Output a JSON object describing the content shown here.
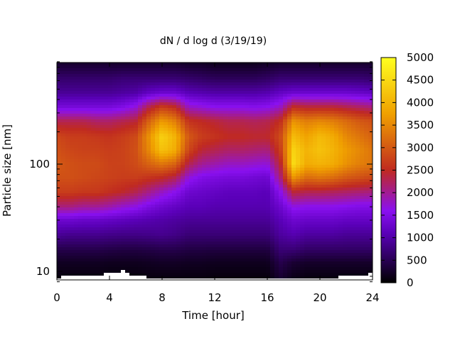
{
  "chart_data": {
    "type": "heatmap",
    "title": "dN / d log d (3/19/19)",
    "xlabel": "Time [hour]",
    "ylabel": "Particle size [nm]",
    "x_range": [
      0,
      24
    ],
    "y_range_nm": [
      8,
      900
    ],
    "y_scale": "log",
    "x_ticks": [
      {
        "value": 0,
        "label": "0"
      },
      {
        "value": 4,
        "label": "4"
      },
      {
        "value": 8,
        "label": "8"
      },
      {
        "value": 12,
        "label": "12"
      },
      {
        "value": 16,
        "label": "16"
      },
      {
        "value": 20,
        "label": "20"
      },
      {
        "value": 24,
        "label": "24"
      }
    ],
    "y_ticks": [
      {
        "value": 10,
        "label": "10"
      },
      {
        "value": 100,
        "label": "100"
      }
    ],
    "colorbar": {
      "range": [
        0,
        5000
      ],
      "palette": [
        "#000000",
        "#6a00d0",
        "#c02a20",
        "#f0a000",
        "#ffff20"
      ],
      "ticks": [
        {
          "value": 0,
          "label": "0"
        },
        {
          "value": 500,
          "label": "500"
        },
        {
          "value": 1000,
          "label": "1000"
        },
        {
          "value": 1500,
          "label": "1500"
        },
        {
          "value": 2000,
          "label": "2000"
        },
        {
          "value": 2500,
          "label": "2500"
        },
        {
          "value": 3000,
          "label": "3000"
        },
        {
          "value": 3500,
          "label": "3500"
        },
        {
          "value": 4000,
          "label": "4000"
        },
        {
          "value": 4500,
          "label": "4500"
        },
        {
          "value": 5000,
          "label": "5000"
        }
      ]
    },
    "hours": [
      0,
      1,
      2,
      3,
      4,
      5,
      6,
      7,
      8,
      9,
      10,
      11,
      12,
      13,
      14,
      15,
      16,
      17,
      18,
      19,
      20,
      21,
      22,
      23,
      24
    ],
    "sizes_nm": [
      9,
      12,
      16,
      22,
      30,
      40,
      55,
      75,
      100,
      135,
      180,
      250,
      340,
      460,
      620,
      850
    ],
    "values": [
      [
        100,
        200,
        450,
        900,
        1300,
        2100,
        2700,
        2900,
        3000,
        2900,
        2800,
        2300,
        1400,
        900,
        650,
        300
      ],
      [
        100,
        200,
        450,
        850,
        1300,
        2100,
        2700,
        2900,
        2900,
        2800,
        2700,
        2300,
        1400,
        900,
        650,
        300
      ],
      [
        100,
        200,
        450,
        850,
        1250,
        2000,
        2650,
        2850,
        2850,
        2750,
        2700,
        2300,
        1400,
        900,
        650,
        300
      ],
      [
        100,
        200,
        450,
        850,
        1250,
        2000,
        2650,
        2800,
        2850,
        2750,
        2650,
        2200,
        1400,
        900,
        650,
        300
      ],
      [
        80,
        180,
        420,
        820,
        1200,
        1900,
        2550,
        2750,
        2750,
        2700,
        2600,
        2200,
        1400,
        900,
        650,
        300
      ],
      [
        80,
        180,
        400,
        800,
        1150,
        1750,
        2450,
        2700,
        2750,
        2750,
        2700,
        2300,
        1500,
        950,
        700,
        300
      ],
      [
        80,
        180,
        400,
        800,
        1100,
        1650,
        2300,
        2700,
        2850,
        2900,
        2850,
        2400,
        1700,
        1000,
        700,
        300
      ],
      [
        100,
        200,
        420,
        820,
        1050,
        1450,
        2050,
        2600,
        3100,
        3500,
        3600,
        3100,
        2300,
        1200,
        700,
        300
      ],
      [
        100,
        220,
        450,
        850,
        1000,
        1300,
        1800,
        2500,
        3300,
        4200,
        4400,
        3700,
        2700,
        1300,
        700,
        300
      ],
      [
        100,
        220,
        450,
        800,
        950,
        1200,
        1600,
        2300,
        3100,
        3900,
        4000,
        3400,
        2500,
        1300,
        700,
        300
      ],
      [
        100,
        200,
        400,
        700,
        900,
        1100,
        1300,
        1700,
        2300,
        2800,
        3000,
        2600,
        1800,
        1100,
        650,
        250
      ],
      [
        100,
        200,
        400,
        700,
        900,
        1100,
        1250,
        1500,
        2000,
        2400,
        2700,
        2500,
        1700,
        1050,
        600,
        250
      ],
      [
        80,
        180,
        380,
        700,
        900,
        1050,
        1200,
        1450,
        1900,
        2300,
        2600,
        2400,
        1600,
        1000,
        550,
        200
      ],
      [
        80,
        180,
        380,
        700,
        900,
        1050,
        1150,
        1400,
        1800,
        2200,
        2500,
        2300,
        1600,
        1000,
        550,
        200
      ],
      [
        80,
        180,
        380,
        700,
        900,
        1050,
        1150,
        1400,
        1800,
        2200,
        2500,
        2300,
        1600,
        1000,
        550,
        200
      ],
      [
        80,
        180,
        380,
        700,
        900,
        1050,
        1150,
        1350,
        1750,
        2150,
        2450,
        2250,
        1550,
        1000,
        550,
        200
      ],
      [
        80,
        180,
        380,
        700,
        900,
        1050,
        1100,
        1300,
        1700,
        2100,
        2450,
        2300,
        1600,
        1050,
        600,
        250
      ],
      [
        300,
        450,
        700,
        950,
        1100,
        1300,
        1600,
        2100,
        2400,
        2700,
        2850,
        2550,
        1800,
        1200,
        700,
        300
      ],
      [
        150,
        300,
        700,
        1050,
        1300,
        1650,
        2400,
        3600,
        4500,
        4400,
        4100,
        3600,
        2500,
        1300,
        700,
        300
      ],
      [
        100,
        250,
        600,
        950,
        1250,
        1600,
        2300,
        3200,
        3900,
        4000,
        3800,
        3400,
        2400,
        1300,
        700,
        300
      ],
      [
        100,
        250,
        600,
        950,
        1250,
        1600,
        2300,
        3300,
        4000,
        4200,
        4100,
        3500,
        2400,
        1300,
        700,
        300
      ],
      [
        100,
        250,
        600,
        950,
        1250,
        1600,
        2250,
        3200,
        3900,
        4000,
        3900,
        3400,
        2400,
        1300,
        700,
        300
      ],
      [
        100,
        250,
        600,
        900,
        1200,
        1550,
        2200,
        3000,
        3600,
        3700,
        3500,
        3200,
        2300,
        1300,
        700,
        300
      ],
      [
        100,
        250,
        600,
        900,
        1200,
        1500,
        2150,
        2900,
        3400,
        3500,
        3300,
        3000,
        2200,
        1250,
        700,
        300
      ],
      [
        100,
        250,
        600,
        900,
        1200,
        1500,
        2100,
        2800,
        3300,
        3300,
        3100,
        2900,
        2100,
        1200,
        650,
        300
      ]
    ],
    "min_detectable_size_nm": [
      8.8,
      9.0,
      9.0,
      9.3,
      9.5,
      10.2,
      9.0,
      8.8,
      8.8,
      8.8,
      8.8,
      8.8,
      8.8,
      8.8,
      8.8,
      8.8,
      8.8,
      8.8,
      8.8,
      8.8,
      8.8,
      8.8,
      9.0,
      9.2,
      9.5
    ]
  }
}
